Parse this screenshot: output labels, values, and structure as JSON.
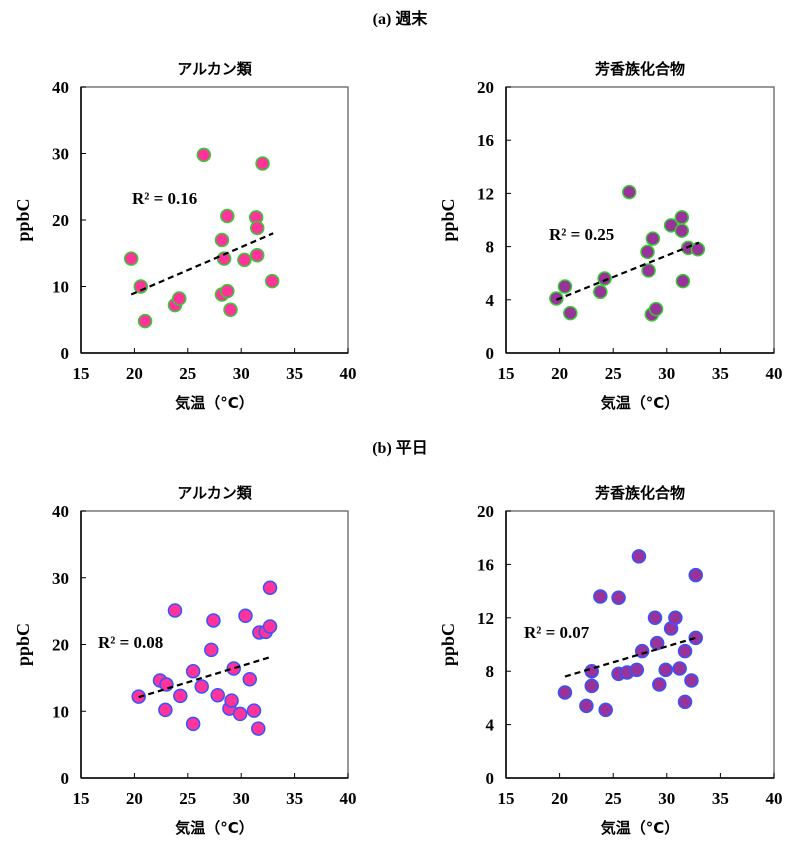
{
  "sections": [
    {
      "label": "(a)  週末"
    },
    {
      "label": "(b)  平日"
    }
  ],
  "colors": {
    "alkane_fill": "#ff3399",
    "aromatic_fill": "#993399",
    "weekend_stroke": "#33cc33",
    "weekday_stroke": "#3355ff",
    "trend": "#000000"
  },
  "chart_data": [
    {
      "type": "scatter",
      "section": "(a) 週末",
      "title": "アルカン類",
      "xlabel": "気温（°C）",
      "ylabel": "ppbC",
      "xlim": [
        15,
        40
      ],
      "ylim": [
        0,
        40
      ],
      "xticks": [
        15,
        20,
        25,
        30,
        35,
        40
      ],
      "yticks": [
        0,
        10,
        20,
        30,
        40
      ],
      "annotation": "R² = 0.16",
      "trendline": [
        [
          19.7,
          8.8
        ],
        [
          33,
          18
        ]
      ],
      "points": [
        [
          19.7,
          14.2
        ],
        [
          20.6,
          10
        ],
        [
          21,
          4.8
        ],
        [
          23.8,
          7.2
        ],
        [
          24.2,
          8.2
        ],
        [
          26.5,
          29.8
        ],
        [
          28.2,
          17
        ],
        [
          28.4,
          14.2
        ],
        [
          28.2,
          8.8
        ],
        [
          28.7,
          9.3
        ],
        [
          29,
          6.5
        ],
        [
          28.7,
          20.6
        ],
        [
          30.3,
          14
        ],
        [
          31.4,
          20.4
        ],
        [
          31.5,
          18.8
        ],
        [
          31.5,
          14.7
        ],
        [
          32,
          28.5
        ],
        [
          32.9,
          10.8
        ]
      ]
    },
    {
      "type": "scatter",
      "section": "(a) 週末",
      "title": "芳香族化合物",
      "xlabel": "気温（°C）",
      "ylabel": "ppbC",
      "xlim": [
        15,
        40
      ],
      "ylim": [
        0,
        20
      ],
      "xticks": [
        15,
        20,
        25,
        30,
        35,
        40
      ],
      "yticks": [
        0,
        4,
        8,
        12,
        16,
        20
      ],
      "annotation": "R² = 0.25",
      "trendline": [
        [
          19.7,
          4.0
        ],
        [
          33,
          8.3
        ]
      ],
      "points": [
        [
          19.7,
          4.1
        ],
        [
          20.5,
          5
        ],
        [
          21,
          3
        ],
        [
          23.8,
          4.6
        ],
        [
          24.2,
          5.6
        ],
        [
          26.5,
          12.1
        ],
        [
          28.2,
          7.6
        ],
        [
          28.3,
          6.2
        ],
        [
          28.7,
          8.6
        ],
        [
          28.6,
          2.9
        ],
        [
          29,
          3.3
        ],
        [
          30.4,
          9.6
        ],
        [
          31.4,
          10.2
        ],
        [
          31.4,
          9.2
        ],
        [
          31.5,
          5.4
        ],
        [
          32,
          7.9
        ],
        [
          32.9,
          7.8
        ]
      ]
    },
    {
      "type": "scatter",
      "section": "(b) 平日",
      "title": "アルカン類",
      "xlabel": "気温（°C）",
      "ylabel": "ppbC",
      "xlim": [
        15,
        40
      ],
      "ylim": [
        0,
        40
      ],
      "xticks": [
        15,
        20,
        25,
        30,
        35,
        40
      ],
      "yticks": [
        0,
        10,
        20,
        30,
        40
      ],
      "annotation": "R² = 0.08",
      "trendline": [
        [
          20.4,
          12.1
        ],
        [
          32.7,
          18.1
        ]
      ],
      "points": [
        [
          20.4,
          12.2
        ],
        [
          22.4,
          14.6
        ],
        [
          23,
          14
        ],
        [
          22.9,
          10.2
        ],
        [
          23.8,
          25.1
        ],
        [
          24.3,
          12.3
        ],
        [
          25.5,
          16
        ],
        [
          25.5,
          8.1
        ],
        [
          26.3,
          13.7
        ],
        [
          27.2,
          19.2
        ],
        [
          27.4,
          23.6
        ],
        [
          27.8,
          12.4
        ],
        [
          28.9,
          10.4
        ],
        [
          29.1,
          11.6
        ],
        [
          29.3,
          16.4
        ],
        [
          29.9,
          9.6
        ],
        [
          30.4,
          24.3
        ],
        [
          30.8,
          14.8
        ],
        [
          31.2,
          10.1
        ],
        [
          31.7,
          21.8
        ],
        [
          31.6,
          7.4
        ],
        [
          32.3,
          21.9
        ],
        [
          32.7,
          22.7
        ],
        [
          32.7,
          28.5
        ]
      ]
    },
    {
      "type": "scatter",
      "section": "(b) 平日",
      "title": "芳香族化合物",
      "xlabel": "気温（°C）",
      "ylabel": "ppbC",
      "xlim": [
        15,
        40
      ],
      "ylim": [
        0,
        20
      ],
      "xticks": [
        15,
        20,
        25,
        30,
        35,
        40
      ],
      "yticks": [
        0,
        4,
        8,
        12,
        16,
        20
      ],
      "annotation": "R² = 0.07",
      "trendline": [
        [
          20.5,
          7.6
        ],
        [
          32.7,
          10.5
        ]
      ],
      "points": [
        [
          20.5,
          6.4
        ],
        [
          22.5,
          5.4
        ],
        [
          23,
          6.9
        ],
        [
          23,
          8
        ],
        [
          23.8,
          13.6
        ],
        [
          24.3,
          5.1
        ],
        [
          25.5,
          13.5
        ],
        [
          25.5,
          7.8
        ],
        [
          26.3,
          7.9
        ],
        [
          27.2,
          8.1
        ],
        [
          27.4,
          16.6
        ],
        [
          27.7,
          9.5
        ],
        [
          28.9,
          12
        ],
        [
          29.1,
          10.1
        ],
        [
          29.3,
          7
        ],
        [
          29.9,
          8.1
        ],
        [
          30.4,
          11.2
        ],
        [
          30.8,
          12
        ],
        [
          31.2,
          8.2
        ],
        [
          31.7,
          9.5
        ],
        [
          31.7,
          5.7
        ],
        [
          32.3,
          7.3
        ],
        [
          32.7,
          10.5
        ],
        [
          32.7,
          15.2
        ]
      ]
    }
  ]
}
